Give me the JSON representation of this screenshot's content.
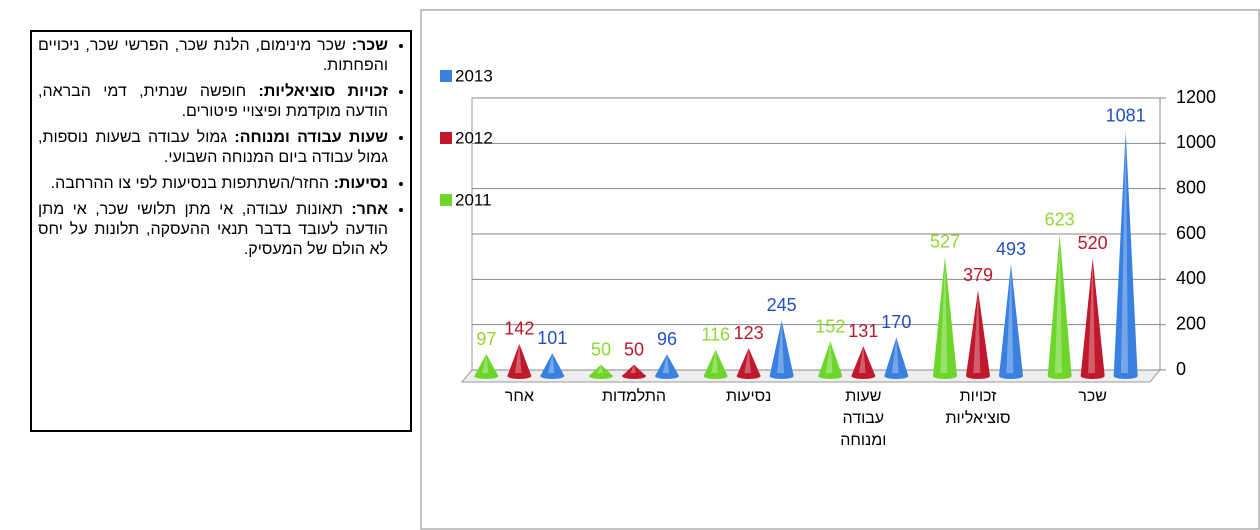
{
  "text_box": {
    "items": [
      {
        "term": "שכר:",
        "text": "שכר מינימום, הלנת שכר, הפרשי שכר, ניכויים והפחתות."
      },
      {
        "term": "זכויות סוציאליות:",
        "text": "חופשה שנתית, דמי הבראה, הודעה מוקדמת ופיצויי פיטורים."
      },
      {
        "term": "שעות עבודה ומנוחה:",
        "text": "גמול עבודה בשעות נוספות, גמול עבודה ביום המנוחה השבועי."
      },
      {
        "term": "נסיעות:",
        "text": "החזר/השתתפות בנסיעות לפי צו ההרחבה."
      },
      {
        "term": "אחר:",
        "text": "תאונות עבודה, אי מתן תלושי שכר, אי מתן הודעה לעובד בדבר תנאי ההעסקה, תלונות על יחס לא הולם של המעסיק."
      }
    ]
  },
  "chart_data": {
    "type": "cone",
    "categories": [
      "שכר",
      "זכויות סוציאליות",
      "שעות עבודה ומנוחה",
      "נסיעות",
      "התלמדות",
      "אחר"
    ],
    "series": [
      {
        "name": "2011",
        "color": "#6ed62a",
        "label_color": "#8fd832",
        "values": [
          623,
          527,
          152,
          116,
          50,
          97
        ]
      },
      {
        "name": "2012",
        "color": "#c0182c",
        "label_color": "#b8182c",
        "values": [
          520,
          379,
          131,
          123,
          50,
          142
        ]
      },
      {
        "name": "2013",
        "color": "#3a80e0",
        "label_color": "#2050c0",
        "values": [
          1081,
          493,
          170,
          245,
          96,
          101
        ]
      }
    ],
    "ylim": [
      0,
      1200
    ],
    "yticks": [
      0,
      200,
      400,
      600,
      800,
      1000,
      1200
    ],
    "grid": true,
    "legend": "left"
  }
}
